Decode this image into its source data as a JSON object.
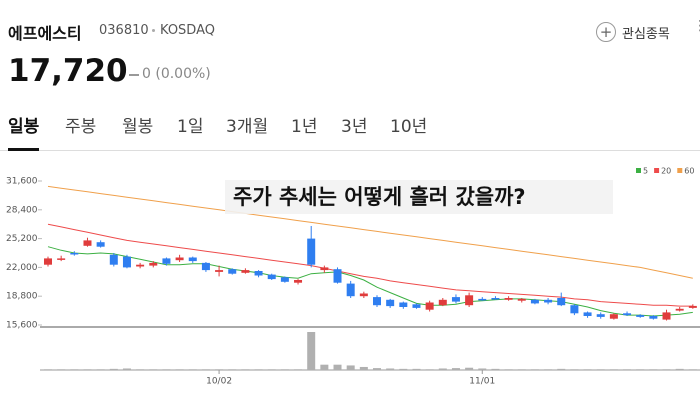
{
  "header": {
    "name": "에프에스티",
    "code": "036810",
    "market": "KOSDAQ",
    "watch_button": "관심종목",
    "price": "17,720",
    "change": "0 (0.00%)"
  },
  "tabs": [
    "일봉",
    "주봉",
    "월봉",
    "1일",
    "3개월",
    "1년",
    "3년",
    "10년"
  ],
  "chart_data": {
    "type": "candlestick",
    "annotation": "주가 추세는 어떻게 흘러 갔을까?",
    "categories": [
      null,
      null,
      null,
      null,
      null,
      null,
      null,
      null,
      null,
      null,
      null,
      null,
      null,
      "10/02",
      null,
      null,
      null,
      null,
      null,
      null,
      null,
      null,
      null,
      null,
      null,
      null,
      null,
      null,
      null,
      null,
      null,
      null,
      null,
      "11/01",
      null,
      null,
      null,
      null,
      null,
      null,
      null,
      null,
      null,
      null,
      null,
      null,
      null,
      null,
      null,
      null
    ],
    "open": [
      22300,
      22900,
      23600,
      24400,
      24800,
      23400,
      23200,
      22100,
      22200,
      23000,
      22800,
      23100,
      22500,
      21500,
      21800,
      21400,
      21600,
      21200,
      20900,
      20300,
      25200,
      21700,
      21800,
      20200,
      18800,
      18700,
      18400,
      18100,
      17900,
      17300,
      17800,
      18700,
      17800,
      18500,
      18600,
      18400,
      18300,
      18400,
      18400,
      18600,
      17800,
      17000,
      16800,
      16300,
      16900,
      16700,
      16600,
      16200,
      17200,
      17500
    ],
    "high": [
      23200,
      23300,
      23800,
      25300,
      25000,
      23600,
      23400,
      22500,
      22700,
      23100,
      23400,
      23200,
      22600,
      22200,
      21900,
      21900,
      21700,
      21300,
      21000,
      20700,
      26600,
      22200,
      22000,
      20500,
      19300,
      18900,
      18500,
      18200,
      18000,
      18300,
      18600,
      19000,
      19200,
      18700,
      18800,
      18800,
      18600,
      18500,
      18600,
      19200,
      17900,
      17100,
      17000,
      16900,
      17100,
      16800,
      16700,
      17300,
      17600,
      17900
    ],
    "low": [
      22100,
      22700,
      23300,
      24300,
      24200,
      22100,
      21900,
      21900,
      22000,
      22200,
      22600,
      22500,
      21500,
      21000,
      21200,
      21300,
      20900,
      20600,
      20300,
      20100,
      22000,
      21400,
      20200,
      18600,
      18600,
      17600,
      17500,
      17400,
      17400,
      17100,
      17700,
      18000,
      17600,
      18300,
      18400,
      18300,
      18100,
      17900,
      17900,
      17700,
      16700,
      16400,
      16300,
      16200,
      16600,
      16400,
      16200,
      16100,
      17100,
      17400
    ],
    "close": [
      23000,
      23000,
      23500,
      25000,
      24300,
      22300,
      22000,
      22300,
      22500,
      22400,
      23100,
      22700,
      21700,
      21700,
      21300,
      21700,
      21100,
      20700,
      20400,
      20600,
      22300,
      22000,
      20300,
      18800,
      19100,
      17800,
      17700,
      17600,
      17500,
      18100,
      18400,
      18200,
      18900,
      18400,
      18500,
      18600,
      18500,
      18000,
      18100,
      17800,
      16900,
      16600,
      16500,
      16800,
      16700,
      16500,
      16300,
      17000,
      17400,
      17720
    ],
    "up_color": "#e03c3c",
    "down_color": "#2f7ef0",
    "series": [
      {
        "name": "5",
        "color": "#3cb043",
        "values": [
          24300,
          23900,
          23600,
          23500,
          23600,
          23500,
          23200,
          22900,
          22600,
          22300,
          22300,
          22400,
          22400,
          22100,
          21800,
          21600,
          21400,
          21100,
          20900,
          20800,
          21300,
          21400,
          21500,
          21100,
          20600,
          19800,
          19200,
          18600,
          18000,
          17800,
          17800,
          17900,
          18200,
          18300,
          18400,
          18500,
          18500,
          18400,
          18300,
          18200,
          17900,
          17600,
          17200,
          16900,
          16700,
          16700,
          16600,
          16700,
          16800,
          17000
        ]
      },
      {
        "name": "20",
        "color": "#ee4b4b",
        "values": [
          26800,
          26500,
          26200,
          25900,
          25600,
          25300,
          25000,
          24800,
          24600,
          24400,
          24200,
          24000,
          23800,
          23600,
          23400,
          23200,
          23000,
          22800,
          22600,
          22400,
          22200,
          21900,
          21600,
          21300,
          21000,
          20800,
          20500,
          20300,
          20100,
          19900,
          19700,
          19500,
          19400,
          19300,
          19200,
          19100,
          19000,
          18900,
          18800,
          18700,
          18500,
          18400,
          18200,
          18100,
          18000,
          17900,
          17800,
          17800,
          17700,
          17700
        ]
      },
      {
        "name": "60",
        "color": "#f0a04b",
        "values": [
          31000,
          30800,
          30600,
          30400,
          30200,
          30000,
          29800,
          29600,
          29400,
          29200,
          29000,
          28800,
          28600,
          28400,
          28200,
          28000,
          27800,
          27600,
          27400,
          27200,
          27000,
          26800,
          26600,
          26400,
          26200,
          26000,
          25800,
          25600,
          25400,
          25200,
          25000,
          24800,
          24600,
          24400,
          24200,
          24000,
          23800,
          23600,
          23400,
          23200,
          23000,
          22800,
          22600,
          22400,
          22200,
          22000,
          21700,
          21400,
          21100,
          20800
        ]
      }
    ],
    "volume": [
      2,
      2,
      2,
      2,
      2,
      3,
      4,
      2,
      2,
      2,
      2,
      2,
      2,
      2,
      2,
      2,
      2,
      2,
      2,
      2,
      100,
      14,
      14,
      12,
      8,
      5,
      4,
      3,
      3,
      2,
      4,
      5,
      6,
      4,
      3,
      2,
      2,
      2,
      2,
      3,
      2,
      2,
      2,
      2,
      2,
      2,
      2,
      2,
      3,
      2
    ],
    "volume_color": "#b0b0b0",
    "ylim": [
      15600,
      31600
    ],
    "yticks": [
      {
        "value": 31600,
        "label": "31,600"
      },
      {
        "value": 28400,
        "label": "28,400"
      },
      {
        "value": 25200,
        "label": "25,200"
      },
      {
        "value": 22000,
        "label": "22,000"
      },
      {
        "value": 18800,
        "label": "18,800"
      },
      {
        "value": 15600,
        "label": "15,600"
      }
    ],
    "grid": false
  }
}
